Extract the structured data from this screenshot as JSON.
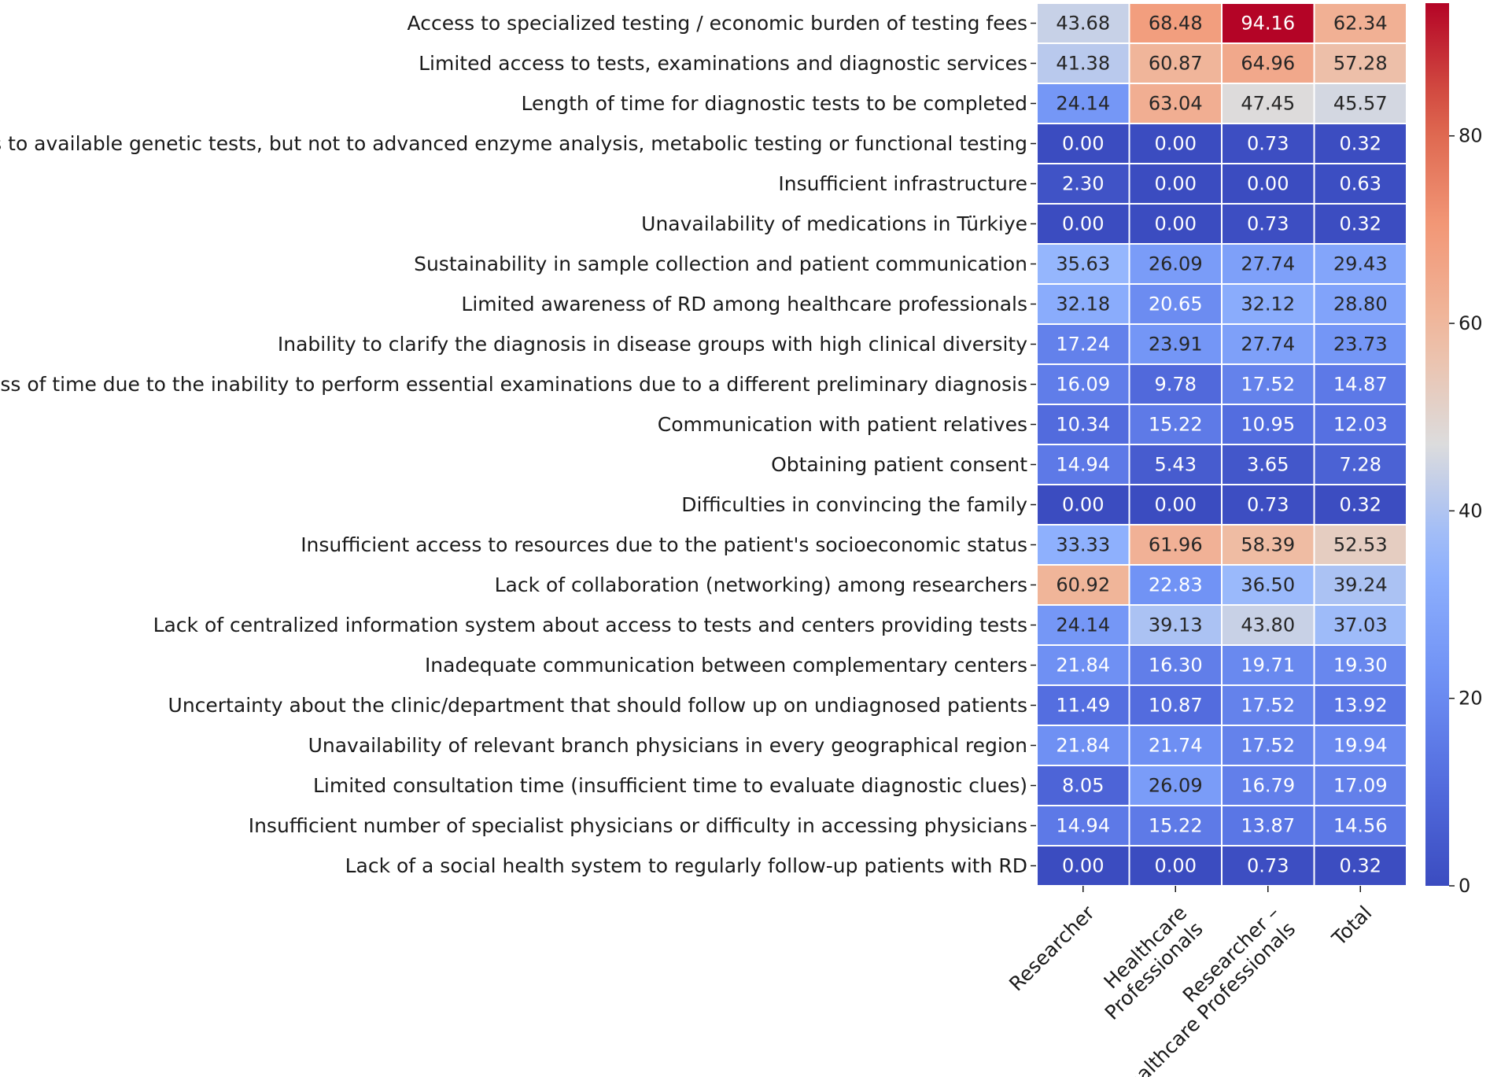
{
  "chart_data": {
    "type": "heatmap",
    "title": "",
    "xlabel": "",
    "ylabel": "",
    "colormap": "coolwarm",
    "vmin": 0,
    "vmax": 94.16,
    "columns": [
      [
        "Researcher"
      ],
      [
        "Healthcare",
        "Professionals"
      ],
      [
        "Researcher –",
        "Healthcare Professionals"
      ],
      [
        "Total"
      ]
    ],
    "rows": [
      "Access to specialized testing / economic burden of testing fees",
      "Limited access to tests, examinations and diagnostic services",
      "Length of time for diagnostic tests to be completed",
      "Access to available genetic tests, but not to advanced enzyme analysis, metabolic testing or functional testing",
      "Insufficient infrastructure",
      "Unavailability of medications in Türkiye",
      "Sustainability in sample collection and patient communication",
      "Limited awareness of RD among healthcare professionals",
      "Inability to clarify the diagnosis in disease groups with high clinical diversity",
      "Loss of time due to the inability to perform essential examinations due to a different preliminary diagnosis",
      "Communication with patient relatives",
      "Obtaining patient consent",
      "Difficulties in convincing the family",
      "Insufficient access to resources due to the patient's socioeconomic status",
      "Lack of collaboration (networking) among researchers",
      "Lack of centralized information system about access to tests and centers providing tests",
      "Inadequate communication between complementary centers",
      "Uncertainty about the clinic/department that should follow up on undiagnosed patients",
      "Unavailability of relevant branch physicians in every geographical region",
      "Limited consultation time (insufficient time to evaluate diagnostic clues)",
      "Insufficient number of specialist physicians or difficulty in accessing physicians",
      "Lack of a social health system to regularly follow-up patients with RD"
    ],
    "values": [
      [
        43.68,
        68.48,
        94.16,
        62.34
      ],
      [
        41.38,
        60.87,
        64.96,
        57.28
      ],
      [
        24.14,
        63.04,
        47.45,
        45.57
      ],
      [
        0.0,
        0.0,
        0.73,
        0.32
      ],
      [
        2.3,
        0.0,
        0.0,
        0.63
      ],
      [
        0.0,
        0.0,
        0.73,
        0.32
      ],
      [
        35.63,
        26.09,
        27.74,
        29.43
      ],
      [
        32.18,
        20.65,
        32.12,
        28.8
      ],
      [
        17.24,
        23.91,
        27.74,
        23.73
      ],
      [
        16.09,
        9.78,
        17.52,
        14.87
      ],
      [
        10.34,
        15.22,
        10.95,
        12.03
      ],
      [
        14.94,
        5.43,
        3.65,
        7.28
      ],
      [
        0.0,
        0.0,
        0.73,
        0.32
      ],
      [
        33.33,
        61.96,
        58.39,
        52.53
      ],
      [
        60.92,
        22.83,
        36.5,
        39.24
      ],
      [
        24.14,
        39.13,
        43.8,
        37.03
      ],
      [
        21.84,
        16.3,
        19.71,
        19.3
      ],
      [
        11.49,
        10.87,
        17.52,
        13.92
      ],
      [
        21.84,
        21.74,
        17.52,
        19.94
      ],
      [
        8.05,
        26.09,
        16.79,
        17.09
      ],
      [
        14.94,
        15.22,
        13.87,
        14.56
      ],
      [
        0.0,
        0.0,
        0.73,
        0.32
      ]
    ],
    "colorbar_ticks": [
      0,
      20,
      40,
      60,
      80
    ]
  }
}
